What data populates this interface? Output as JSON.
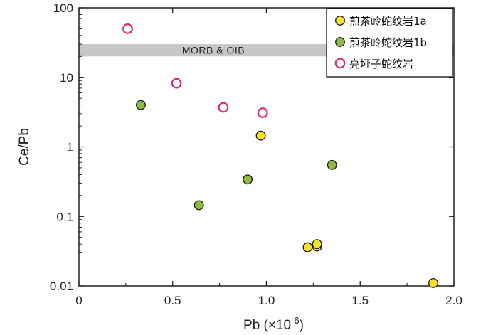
{
  "chart_data": {
    "type": "scatter",
    "title": "",
    "xlabel": "Pb (×10",
    "xlabel_sup": "-6",
    "xlabel_close": ")",
    "ylabel": "Ce/Pb",
    "xlim": [
      0,
      2.0
    ],
    "ylim": [
      0.01,
      100
    ],
    "yscale": "log",
    "xticks": [
      0,
      0.5,
      1.0,
      1.5,
      2.0
    ],
    "xtick_labels": [
      "0",
      "0.5",
      "1.0",
      "1.5",
      "2.0"
    ],
    "yticks": [
      0.01,
      0.1,
      1,
      10,
      100
    ],
    "ytick_labels": [
      "0.01",
      "0.1",
      "1",
      "10",
      "100"
    ],
    "band": {
      "label": "MORB & OIB",
      "y_range": [
        20,
        30
      ],
      "color": "#c8c6c6"
    },
    "legend_position": "top-right",
    "series": [
      {
        "name": "煎茶岭蛇纹岩1a",
        "marker": "filled-circle",
        "color": "#f2e22b",
        "points": [
          [
            0.97,
            1.45
          ],
          [
            1.22,
            0.036
          ],
          [
            1.27,
            0.037
          ],
          [
            1.27,
            0.04
          ],
          [
            1.89,
            0.011
          ]
        ]
      },
      {
        "name": "煎茶岭蛇纹岩1b",
        "marker": "filled-circle",
        "color": "#8dbb3f",
        "points": [
          [
            0.33,
            4.0
          ],
          [
            0.64,
            0.145
          ],
          [
            0.9,
            0.34
          ],
          [
            1.35,
            0.55
          ]
        ]
      },
      {
        "name": "亮垭子蛇纹岩",
        "marker": "open-circle",
        "color": "#d62f7a",
        "points": [
          [
            0.26,
            50
          ],
          [
            0.52,
            8.2
          ],
          [
            0.77,
            3.7
          ],
          [
            0.98,
            3.1
          ]
        ]
      }
    ]
  }
}
